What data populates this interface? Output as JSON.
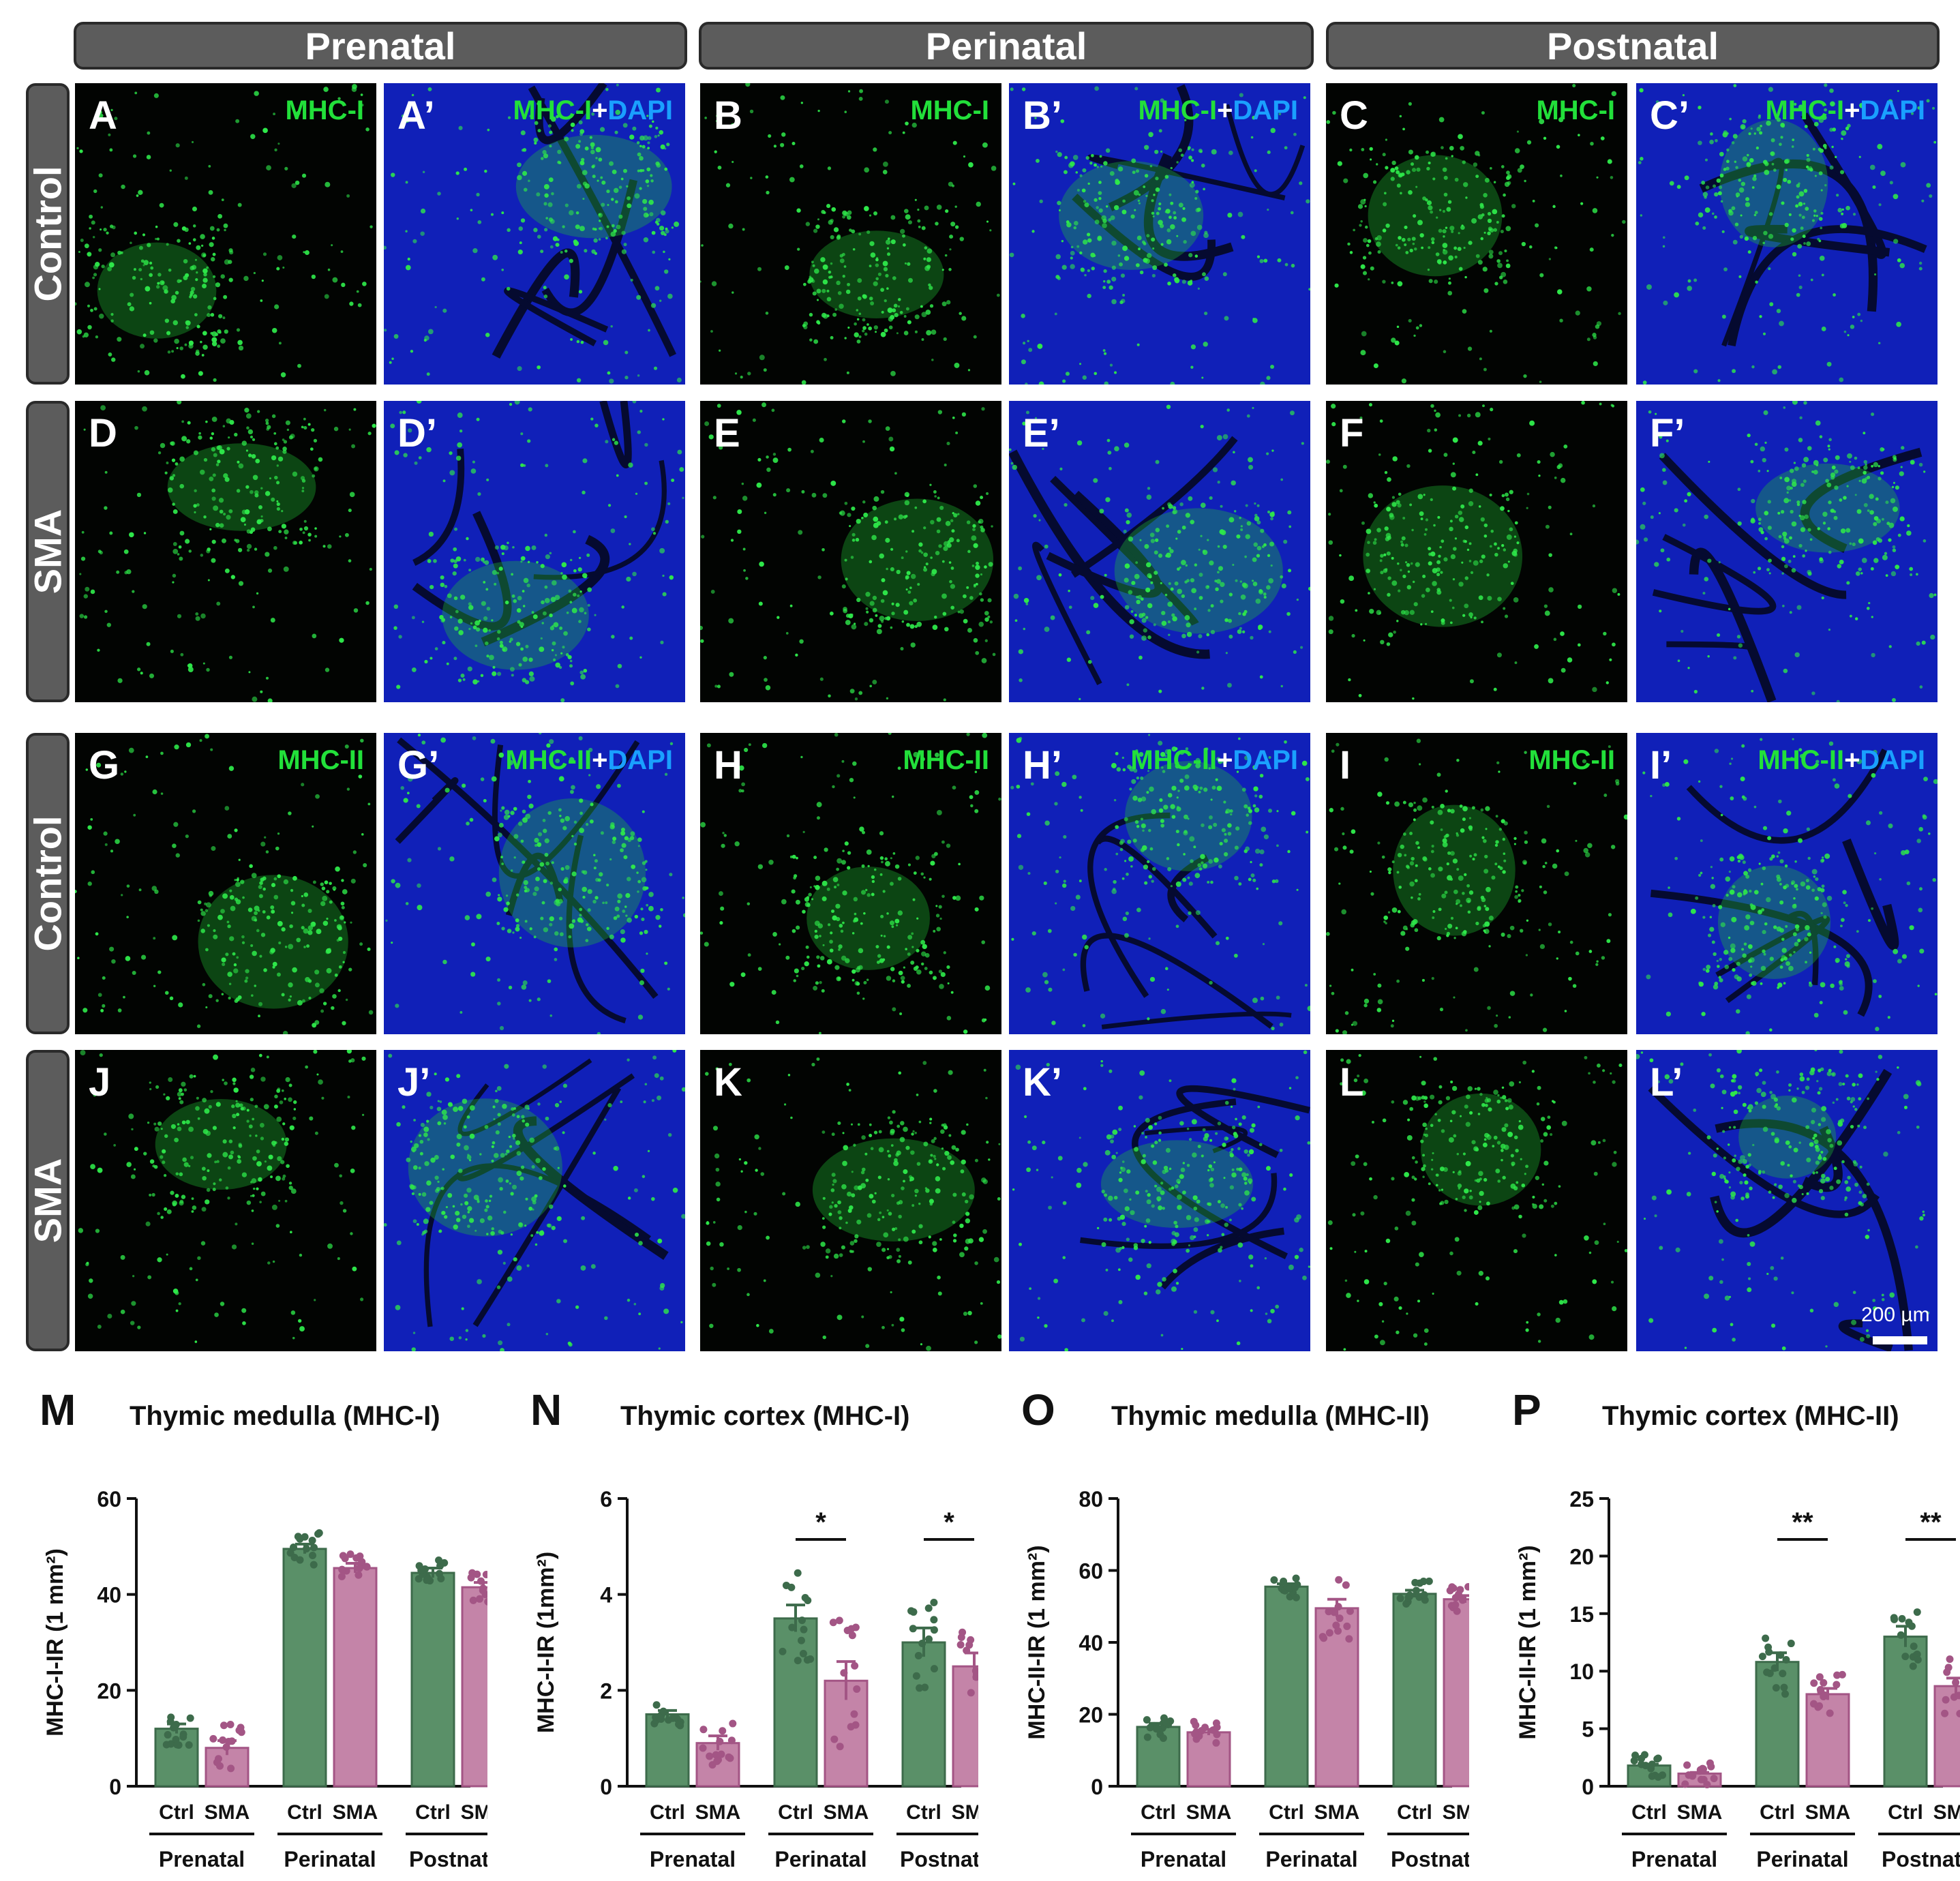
{
  "headers": [
    "Prenatal",
    "Perinatal",
    "Postnatal"
  ],
  "row_labels": [
    "Control",
    "SMA",
    "Control",
    "SMA"
  ],
  "panels": [
    [
      {
        "label": "A",
        "stain": "MHC-I",
        "merge": false
      },
      {
        "label": "A’",
        "stain": "MHC-I",
        "merge": true
      },
      {
        "label": "B",
        "stain": "MHC-I",
        "merge": false
      },
      {
        "label": "B’",
        "stain": "MHC-I",
        "merge": true
      },
      {
        "label": "C",
        "stain": "MHC-I",
        "merge": false
      },
      {
        "label": "C’",
        "stain": "MHC-I",
        "merge": true
      }
    ],
    [
      {
        "label": "D",
        "stain": "",
        "merge": false
      },
      {
        "label": "D’",
        "stain": "",
        "merge": false
      },
      {
        "label": "E",
        "stain": "",
        "merge": false
      },
      {
        "label": "E’",
        "stain": "",
        "merge": false
      },
      {
        "label": "F",
        "stain": "",
        "merge": false
      },
      {
        "label": "F’",
        "stain": "",
        "merge": false
      }
    ],
    [
      {
        "label": "G",
        "stain": "MHC-II",
        "merge": false
      },
      {
        "label": "G’",
        "stain": "MHC-II",
        "merge": true
      },
      {
        "label": "H",
        "stain": "MHC-II",
        "merge": false
      },
      {
        "label": "H’",
        "stain": "MHC-II",
        "merge": true
      },
      {
        "label": "I",
        "stain": "MHC-II",
        "merge": false
      },
      {
        "label": "I’",
        "stain": "MHC-II",
        "merge": true
      }
    ],
    [
      {
        "label": "J",
        "stain": "",
        "merge": false
      },
      {
        "label": "J’",
        "stain": "",
        "merge": false
      },
      {
        "label": "K",
        "stain": "",
        "merge": false
      },
      {
        "label": "K’",
        "stain": "",
        "merge": false
      },
      {
        "label": "L",
        "stain": "",
        "merge": false
      },
      {
        "label": "L’",
        "stain": "",
        "merge": false
      }
    ]
  ],
  "stain_plus": "+",
  "stain_dapi": "DAPI",
  "scale_bar": "200 µm",
  "colors": {
    "ctrl": "#5a9068",
    "ctrl_dot": "#3d6b4b",
    "sma": "#c484a8",
    "sma_dot": "#a35585",
    "green_stain": "#22e03a",
    "dapi": "#1aa0ff"
  },
  "chart_data": [
    {
      "type": "bar",
      "letter": "M",
      "title": "Thymic medulla (MHC-I)",
      "ylabel": "MHC-I-IR (1 mm²)",
      "ylim": [
        0,
        60
      ],
      "yticks": [
        0,
        20,
        40,
        60
      ],
      "categories": [
        "Ctrl",
        "SMA",
        "Ctrl",
        "SMA",
        "Ctrl",
        "SMA"
      ],
      "groups": [
        "Prenatal",
        "Perinatal",
        "Postnatal"
      ],
      "values": [
        12,
        8,
        49.5,
        45.5,
        44.5,
        41.5
      ],
      "errors": [
        1,
        1.5,
        1,
        1,
        1,
        1
      ],
      "significance": []
    },
    {
      "type": "bar",
      "letter": "N",
      "title": "Thymic cortex (MHC-I)",
      "ylabel": "MHC-I-IR (1mm²)",
      "ylim": [
        0,
        6
      ],
      "yticks": [
        0,
        2,
        4,
        6
      ],
      "categories": [
        "Ctrl",
        "SMA",
        "Ctrl",
        "SMA",
        "Ctrl",
        "SMA"
      ],
      "groups": [
        "Prenatal",
        "Perinatal",
        "Postnatal"
      ],
      "values": [
        1.5,
        0.9,
        3.5,
        2.2,
        3.0,
        2.5
      ],
      "errors": [
        0.08,
        0.15,
        0.28,
        0.4,
        0.3,
        0.28
      ],
      "significance": [
        {
          "pair": 1,
          "label": "*"
        },
        {
          "pair": 2,
          "label": "*"
        }
      ]
    },
    {
      "type": "bar",
      "letter": "O",
      "title": "Thymic medulla (MHC-II)",
      "ylabel": "MHC-II-IR (1 mm²)",
      "ylim": [
        0,
        80
      ],
      "yticks": [
        0,
        20,
        40,
        60,
        80
      ],
      "categories": [
        "Ctrl",
        "SMA",
        "Ctrl",
        "SMA",
        "Ctrl",
        "SMA"
      ],
      "groups": [
        "Prenatal",
        "Perinatal",
        "Postnatal"
      ],
      "values": [
        16.5,
        15,
        55.5,
        49.5,
        53.5,
        52
      ],
      "errors": [
        1,
        0.8,
        0.8,
        2.5,
        1,
        1
      ],
      "significance": []
    },
    {
      "type": "bar",
      "letter": "P",
      "title": "Thymic cortex (MHC-II)",
      "ylabel": "MHC-II-IR (1 mm²)",
      "ylim": [
        0,
        25
      ],
      "yticks": [
        0,
        5,
        10,
        15,
        20,
        25
      ],
      "categories": [
        "Ctrl",
        "SMA",
        "Ctrl",
        "SMA",
        "Ctrl",
        "SMA"
      ],
      "groups": [
        "Prenatal",
        "Perinatal",
        "Postnatal"
      ],
      "values": [
        1.8,
        1.1,
        10.8,
        8.0,
        13.0,
        8.7
      ],
      "errors": [
        0.1,
        0.1,
        0.8,
        0.5,
        0.9,
        0.7
      ],
      "significance": [
        {
          "pair": 1,
          "label": "**"
        },
        {
          "pair": 2,
          "label": "**"
        }
      ]
    }
  ]
}
